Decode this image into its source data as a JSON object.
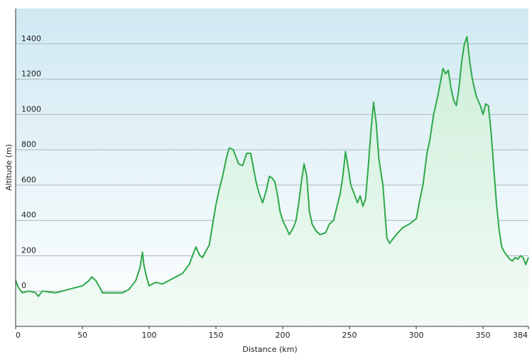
{
  "chart_data": {
    "type": "area",
    "title": "",
    "xlabel": "Distance  (km)",
    "ylabel": "Altitude (m)",
    "xlim": [
      0,
      384
    ],
    "ylim": [
      -200,
      1600
    ],
    "x_ticks": [
      "0",
      "50",
      "100",
      "150",
      "200",
      "250",
      "300",
      "350",
      "384"
    ],
    "y_ticks": [
      "0",
      "200",
      "400",
      "600",
      "800",
      "1000",
      "1200",
      "1400"
    ],
    "grid": true,
    "legend": "none",
    "colors": {
      "line": "#2ea84a",
      "fill_top": "#cdeed9",
      "fill_bottom": "#f2fbf5",
      "bg_top": "#cfe9f2",
      "bg_bottom": "#ffffff",
      "grid": "#aab8bc",
      "axis": "#333333"
    },
    "series": [
      {
        "x": [
          0,
          2,
          5,
          10,
          15,
          17,
          20,
          30,
          35,
          40,
          50,
          55,
          57,
          60,
          63,
          65,
          70,
          75,
          80,
          85,
          90,
          93,
          95,
          96,
          98,
          100,
          105,
          110,
          115,
          120,
          125,
          130,
          135,
          138,
          140,
          142,
          145,
          148,
          150,
          152,
          155,
          158,
          160,
          163,
          165,
          167,
          170,
          173,
          176,
          178,
          180,
          182,
          185,
          188,
          190,
          192,
          194,
          196,
          198,
          200,
          205,
          208,
          210,
          212,
          214,
          216,
          218,
          220,
          222,
          225,
          228,
          232,
          235,
          238,
          240,
          243,
          245,
          247,
          249,
          251,
          254,
          256,
          258,
          260,
          262,
          264,
          266,
          268,
          270,
          272,
          275,
          278,
          280,
          282,
          285,
          290,
          295,
          300,
          303,
          305,
          308,
          310,
          313,
          316,
          318,
          320,
          322,
          324,
          326,
          328,
          330,
          332,
          334,
          336,
          338,
          340,
          342,
          345,
          348,
          350,
          352,
          354,
          356,
          358,
          360,
          362,
          364,
          366,
          368,
          370,
          372,
          374,
          376,
          378,
          380,
          382,
          384
        ],
        "y": [
          60,
          20,
          -10,
          0,
          -10,
          -30,
          0,
          -10,
          0,
          10,
          30,
          60,
          80,
          60,
          20,
          -10,
          -10,
          -10,
          -10,
          10,
          60,
          130,
          220,
          150,
          80,
          30,
          50,
          40,
          60,
          80,
          100,
          150,
          250,
          200,
          190,
          220,
          260,
          400,
          490,
          560,
          650,
          760,
          810,
          800,
          760,
          720,
          710,
          780,
          780,
          700,
          620,
          560,
          500,
          580,
          650,
          640,
          620,
          550,
          450,
          400,
          320,
          360,
          400,
          500,
          620,
          720,
          650,
          450,
          380,
          340,
          320,
          330,
          380,
          400,
          460,
          550,
          650,
          790,
          700,
          600,
          540,
          500,
          540,
          480,
          520,
          700,
          900,
          1070,
          950,
          750,
          600,
          300,
          270,
          290,
          320,
          360,
          380,
          410,
          530,
          600,
          780,
          850,
          1000,
          1100,
          1180,
          1260,
          1230,
          1250,
          1150,
          1080,
          1050,
          1150,
          1300,
          1400,
          1440,
          1300,
          1200,
          1100,
          1050,
          1000,
          1060,
          1050,
          900,
          700,
          500,
          350,
          250,
          220,
          200,
          180,
          170,
          190,
          180,
          200,
          190,
          150,
          190
        ]
      }
    ]
  }
}
